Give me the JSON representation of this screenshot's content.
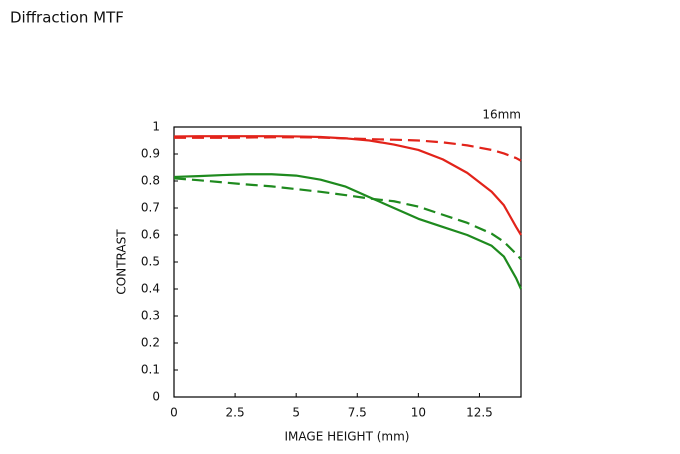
{
  "chart_data": {
    "type": "line",
    "title": "Diffraction MTF",
    "annotation": "16mm",
    "x_label": "IMAGE HEIGHT (mm)",
    "y_label": "CONTRAST",
    "x": [
      0,
      1,
      2,
      3,
      4,
      5,
      6,
      7,
      8,
      9,
      10,
      11,
      12,
      13,
      13.5,
      14,
      14.2
    ],
    "series": [
      {
        "color": "#e2231a",
        "dashed": false,
        "values": [
          0.965,
          0.966,
          0.966,
          0.966,
          0.966,
          0.965,
          0.963,
          0.958,
          0.95,
          0.935,
          0.915,
          0.88,
          0.83,
          0.76,
          0.71,
          0.63,
          0.6
        ]
      },
      {
        "color": "#e2231a",
        "dashed": true,
        "values": [
          0.96,
          0.96,
          0.96,
          0.961,
          0.962,
          0.962,
          0.961,
          0.958,
          0.955,
          0.953,
          0.95,
          0.943,
          0.932,
          0.915,
          0.902,
          0.885,
          0.875
        ]
      },
      {
        "color": "#1e8a1e",
        "dashed": false,
        "values": [
          0.815,
          0.818,
          0.822,
          0.825,
          0.825,
          0.82,
          0.805,
          0.78,
          0.74,
          0.7,
          0.66,
          0.63,
          0.6,
          0.56,
          0.52,
          0.44,
          0.4
        ]
      },
      {
        "color": "#1e8a1e",
        "dashed": true,
        "values": [
          0.81,
          0.803,
          0.795,
          0.787,
          0.78,
          0.77,
          0.76,
          0.748,
          0.735,
          0.725,
          0.705,
          0.675,
          0.645,
          0.605,
          0.575,
          0.53,
          0.51
        ]
      }
    ],
    "xlim": [
      0,
      14.2
    ],
    "ylim": [
      0,
      1
    ],
    "xticks": [
      0,
      2.5,
      5,
      7.5,
      10,
      12.5
    ],
    "yticks": [
      0,
      0.1,
      0.2,
      0.3,
      0.4,
      0.5,
      0.6,
      0.7,
      0.8,
      0.9,
      1
    ],
    "grid": false
  }
}
